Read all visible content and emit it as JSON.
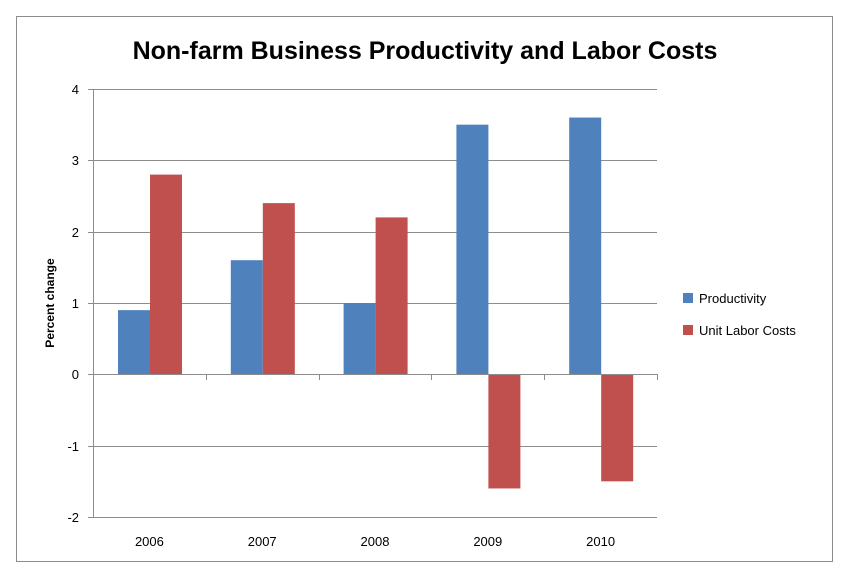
{
  "chart_data": {
    "type": "bar",
    "title": "Non-farm Business Productivity and Labor Costs",
    "xlabel": "",
    "ylabel": "Percent change",
    "categories": [
      "2006",
      "2007",
      "2008",
      "2009",
      "2010"
    ],
    "series": [
      {
        "name": "Productivity",
        "color": "#4f81bd",
        "values": [
          0.9,
          1.6,
          1.0,
          3.5,
          3.6
        ]
      },
      {
        "name": "Unit Labor Costs",
        "color": "#c0504d",
        "values": [
          2.8,
          2.4,
          2.2,
          -1.6,
          -1.5
        ]
      }
    ],
    "ylim": [
      -2,
      4
    ],
    "yticks": [
      "-2",
      "-1",
      "0",
      "1",
      "2",
      "3",
      "4"
    ],
    "grid": true,
    "legend_position": "right"
  }
}
